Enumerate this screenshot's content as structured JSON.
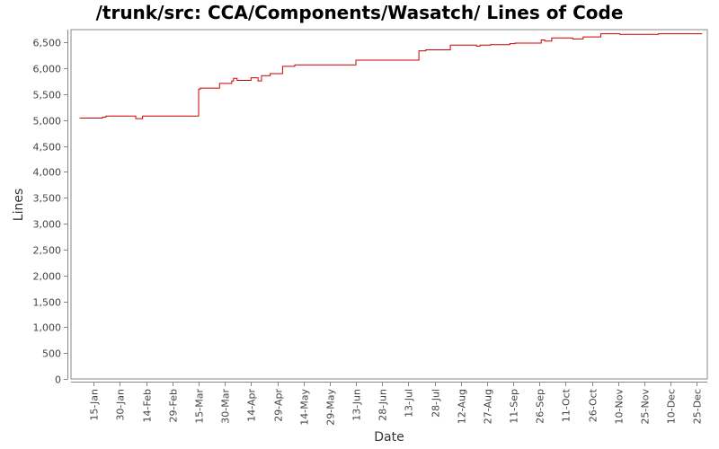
{
  "chart_data": {
    "type": "line",
    "title": "/trunk/src: CCA/Components/Wasatch/ Lines of Code",
    "xlabel": "Date",
    "ylabel": "Lines",
    "ylim": [
      0,
      6750
    ],
    "yticks": [
      0,
      500,
      1000,
      1500,
      2000,
      2500,
      3000,
      3500,
      4000,
      4500,
      5000,
      5500,
      6000,
      6500
    ],
    "ytick_labels": [
      "0",
      "500",
      "1,000",
      "1,500",
      "2,000",
      "2,500",
      "3,000",
      "3,500",
      "4,000",
      "4,500",
      "5,000",
      "5,500",
      "6,000",
      "6,500"
    ],
    "xlim": [
      "2016-01-02",
      "2016-12-31"
    ],
    "xticks": [
      "2016-01-15",
      "2016-01-30",
      "2016-02-14",
      "2016-02-29",
      "2016-03-15",
      "2016-03-30",
      "2016-04-14",
      "2016-04-29",
      "2016-05-14",
      "2016-05-29",
      "2016-06-13",
      "2016-06-28",
      "2016-07-13",
      "2016-07-28",
      "2016-08-12",
      "2016-08-27",
      "2016-09-11",
      "2016-09-26",
      "2016-10-11",
      "2016-10-26",
      "2016-11-10",
      "2016-11-25",
      "2016-12-10",
      "2016-12-25"
    ],
    "xtick_labels": [
      "15-Jan",
      "30-Jan",
      "14-Feb",
      "29-Feb",
      "15-Mar",
      "30-Mar",
      "14-Apr",
      "29-Apr",
      "14-May",
      "29-May",
      "13-Jun",
      "28-Jun",
      "13-Jul",
      "28-Jul",
      "12-Aug",
      "27-Aug",
      "11-Sep",
      "26-Sep",
      "11-Oct",
      "26-Oct",
      "10-Nov",
      "25-Nov",
      "10-Dec",
      "25-Dec"
    ],
    "grid": false,
    "legend": "none",
    "series": [
      {
        "color": "#cc0000",
        "step": true,
        "points": [
          [
            "2016-01-07",
            5040
          ],
          [
            "2016-01-20",
            5060
          ],
          [
            "2016-01-22",
            5080
          ],
          [
            "2016-02-08",
            5030
          ],
          [
            "2016-02-12",
            5080
          ],
          [
            "2016-03-15",
            5600
          ],
          [
            "2016-03-16",
            5620
          ],
          [
            "2016-03-27",
            5710
          ],
          [
            "2016-04-03",
            5760
          ],
          [
            "2016-04-04",
            5810
          ],
          [
            "2016-04-06",
            5770
          ],
          [
            "2016-04-14",
            5820
          ],
          [
            "2016-04-18",
            5760
          ],
          [
            "2016-04-20",
            5860
          ],
          [
            "2016-04-25",
            5900
          ],
          [
            "2016-05-02",
            6040
          ],
          [
            "2016-05-09",
            6070
          ],
          [
            "2016-06-13",
            6160
          ],
          [
            "2016-07-19",
            6340
          ],
          [
            "2016-07-23",
            6360
          ],
          [
            "2016-08-06",
            6450
          ],
          [
            "2016-08-21",
            6430
          ],
          [
            "2016-08-23",
            6450
          ],
          [
            "2016-08-29",
            6460
          ],
          [
            "2016-09-09",
            6480
          ],
          [
            "2016-09-12",
            6490
          ],
          [
            "2016-09-27",
            6550
          ],
          [
            "2016-09-29",
            6530
          ],
          [
            "2016-10-03",
            6590
          ],
          [
            "2016-10-15",
            6570
          ],
          [
            "2016-10-21",
            6610
          ],
          [
            "2016-10-31",
            6670
          ],
          [
            "2016-11-11",
            6660
          ],
          [
            "2016-12-03",
            6670
          ],
          [
            "2016-12-28",
            6670
          ]
        ]
      }
    ]
  }
}
